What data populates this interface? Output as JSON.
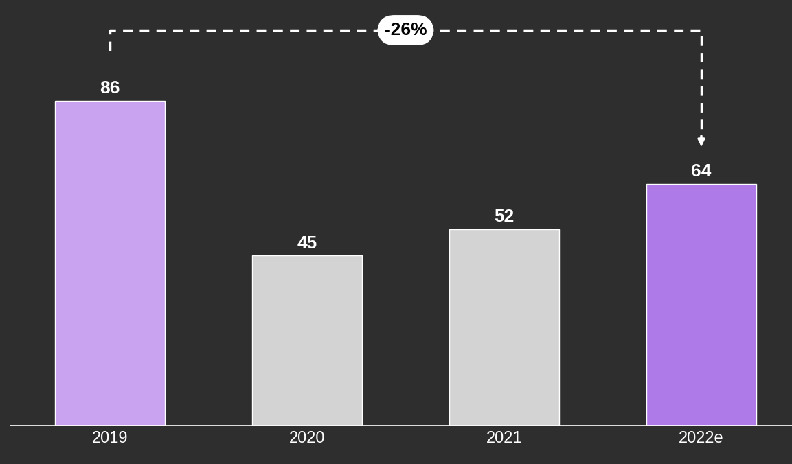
{
  "chart_data": {
    "type": "bar",
    "categories": [
      "2019",
      "2020",
      "2021",
      "2022e"
    ],
    "values": [
      86,
      45,
      52,
      64
    ],
    "colors": [
      "#c9a3f0",
      "#d3d3d3",
      "#d3d3d3",
      "#ad7ae8"
    ],
    "ylim": [
      0,
      110
    ],
    "data_labels": true,
    "tick_labels": "x",
    "grid": false,
    "annotation": "-26%"
  }
}
